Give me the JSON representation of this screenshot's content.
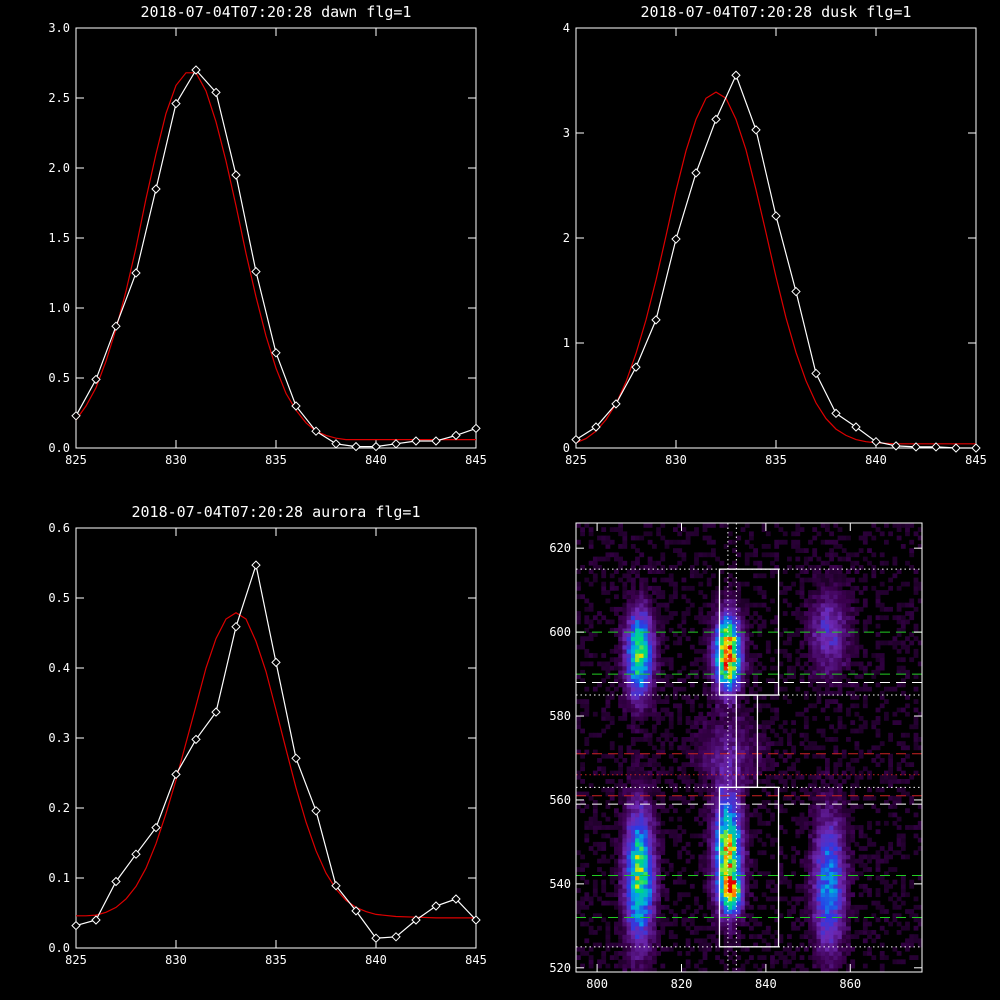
{
  "chart_data": [
    {
      "type": "line",
      "title": "2018-07-04T07:20:28 dawn flg=1",
      "xlim": [
        825,
        845
      ],
      "ylim": [
        0,
        3.0
      ],
      "xticks": [
        "825",
        "830",
        "835",
        "840",
        "845"
      ],
      "yticks": [
        "0.0",
        "0.5",
        "1.0",
        "1.5",
        "2.0",
        "2.5",
        "3.0"
      ],
      "series": [
        {
          "color": "#ffffff",
          "markers": "diamond",
          "x": [
            825,
            826,
            827,
            828,
            829,
            830,
            831,
            832,
            833,
            834,
            835,
            836,
            837,
            838,
            839,
            840,
            841,
            842,
            843,
            844,
            845
          ],
          "y": [
            0.23,
            0.49,
            0.87,
            1.25,
            1.85,
            2.46,
            2.7,
            2.54,
            1.95,
            1.26,
            0.68,
            0.3,
            0.12,
            0.03,
            0.01,
            0.01,
            0.03,
            0.05,
            0.05,
            0.09,
            0.14
          ]
        },
        {
          "color": "#dd0000",
          "markers": "none",
          "x": [
            825,
            825.5,
            826,
            826.5,
            827,
            827.5,
            828,
            828.5,
            829,
            829.5,
            830,
            830.5,
            831,
            831.5,
            832,
            832.5,
            833,
            833.5,
            834,
            834.5,
            835,
            835.5,
            836,
            836.5,
            837,
            837.5,
            838,
            838.5,
            839,
            839.5,
            840,
            841,
            842,
            843,
            844,
            845
          ],
          "y": [
            0.2,
            0.3,
            0.43,
            0.62,
            0.85,
            1.12,
            1.43,
            1.78,
            2.1,
            2.39,
            2.59,
            2.68,
            2.68,
            2.55,
            2.33,
            2.05,
            1.73,
            1.39,
            1.08,
            0.8,
            0.57,
            0.39,
            0.27,
            0.18,
            0.12,
            0.09,
            0.07,
            0.06,
            0.06,
            0.06,
            0.06,
            0.06,
            0.06,
            0.06,
            0.06,
            0.06
          ]
        }
      ]
    },
    {
      "type": "line",
      "title": "2018-07-04T07:20:28 dusk flg=1",
      "xlim": [
        825,
        845
      ],
      "ylim": [
        0,
        4
      ],
      "xticks": [
        "825",
        "830",
        "835",
        "840",
        "845"
      ],
      "yticks": [
        "0",
        "1",
        "2",
        "3",
        "4"
      ],
      "series": [
        {
          "color": "#ffffff",
          "markers": "diamond",
          "x": [
            825,
            826,
            827,
            828,
            829,
            830,
            831,
            832,
            833,
            834,
            835,
            836,
            837,
            838,
            839,
            840,
            841,
            842,
            843,
            844,
            845
          ],
          "y": [
            0.08,
            0.2,
            0.42,
            0.77,
            1.22,
            1.99,
            2.62,
            3.13,
            3.55,
            3.03,
            2.21,
            1.49,
            0.71,
            0.33,
            0.2,
            0.06,
            0.02,
            0.01,
            0.01,
            0,
            0
          ]
        },
        {
          "color": "#dd0000",
          "markers": "none",
          "x": [
            825,
            825.5,
            826,
            826.5,
            827,
            827.5,
            828,
            828.5,
            829,
            829.5,
            830,
            830.5,
            831,
            831.5,
            832,
            832.5,
            833,
            833.5,
            834,
            834.5,
            835,
            835.5,
            836,
            836.5,
            837,
            837.5,
            838,
            838.5,
            839,
            839.5,
            840,
            841,
            842,
            843,
            844,
            845
          ],
          "y": [
            0.05,
            0.09,
            0.16,
            0.27,
            0.42,
            0.63,
            0.9,
            1.22,
            1.6,
            2.02,
            2.45,
            2.83,
            3.13,
            3.33,
            3.39,
            3.33,
            3.13,
            2.84,
            2.46,
            2.05,
            1.63,
            1.24,
            0.91,
            0.64,
            0.43,
            0.28,
            0.18,
            0.12,
            0.08,
            0.06,
            0.05,
            0.04,
            0.04,
            0.04,
            0.04,
            0.04
          ]
        }
      ]
    },
    {
      "type": "line",
      "title": "2018-07-04T07:20:28 aurora flg=1",
      "xlim": [
        825,
        845
      ],
      "ylim": [
        0,
        0.6
      ],
      "xticks": [
        "825",
        "830",
        "835",
        "840",
        "845"
      ],
      "yticks": [
        "0.0",
        "0.1",
        "0.2",
        "0.3",
        "0.4",
        "0.5",
        "0.6"
      ],
      "series": [
        {
          "color": "#ffffff",
          "markers": "diamond",
          "x": [
            825,
            826,
            827,
            828,
            829,
            830,
            831,
            832,
            833,
            834,
            835,
            836,
            837,
            838,
            839,
            840,
            841,
            842,
            843,
            844,
            845
          ],
          "y": [
            0.032,
            0.04,
            0.095,
            0.134,
            0.172,
            0.248,
            0.298,
            0.337,
            0.459,
            0.547,
            0.408,
            0.271,
            0.196,
            0.089,
            0.053,
            0.014,
            0.016,
            0.04,
            0.06,
            0.07,
            0.04
          ]
        },
        {
          "color": "#dd0000",
          "markers": "none",
          "x": [
            825,
            825.5,
            826,
            826.5,
            827,
            827.5,
            828,
            828.5,
            829,
            829.5,
            830,
            830.5,
            831,
            831.5,
            832,
            832.5,
            833,
            833.5,
            834,
            834.5,
            835,
            835.5,
            836,
            836.5,
            837,
            837.5,
            838,
            838.5,
            839,
            839.5,
            840,
            841,
            842,
            843,
            844,
            845
          ],
          "y": [
            0.046,
            0.046,
            0.047,
            0.051,
            0.058,
            0.07,
            0.088,
            0.114,
            0.149,
            0.192,
            0.24,
            0.293,
            0.346,
            0.4,
            0.442,
            0.47,
            0.479,
            0.47,
            0.438,
            0.395,
            0.34,
            0.284,
            0.229,
            0.18,
            0.139,
            0.107,
            0.084,
            0.068,
            0.058,
            0.052,
            0.048,
            0.045,
            0.044,
            0.043,
            0.043,
            0.043
          ]
        }
      ]
    },
    {
      "type": "heatmap",
      "title": "",
      "xlim": [
        795,
        877
      ],
      "ylim": [
        519,
        626
      ],
      "xticks": [
        "800",
        "820",
        "840",
        "860"
      ],
      "yticks": [
        "520",
        "540",
        "560",
        "580",
        "600",
        "620"
      ],
      "blobs": [
        {
          "x": 810,
          "y": 595,
          "wx": 2.2,
          "wy": 7,
          "amp": 0.72
        },
        {
          "x": 810,
          "y": 542,
          "wx": 2.3,
          "wy": 11,
          "amp": 0.7
        },
        {
          "x": 831,
          "y": 595,
          "wx": 2.1,
          "wy": 6,
          "amp": 1.0
        },
        {
          "x": 831,
          "y": 548,
          "wx": 2.2,
          "wy": 9,
          "amp": 0.82
        },
        {
          "x": 832,
          "y": 538,
          "wx": 1.6,
          "wy": 3,
          "amp": 0.55
        },
        {
          "x": 855,
          "y": 540,
          "wx": 2.5,
          "wy": 11,
          "amp": 0.5
        },
        {
          "x": 855,
          "y": 600,
          "wx": 3.0,
          "wy": 7,
          "amp": 0.28
        },
        {
          "x": 831,
          "y": 571,
          "wx": 5.0,
          "wy": 5,
          "amp": 0.18
        }
      ],
      "boxes": [
        [
          829,
          585,
          843,
          615
        ],
        [
          833,
          563,
          838,
          585
        ],
        [
          829,
          525,
          843,
          563
        ]
      ],
      "vlines": [
        {
          "x": 831,
          "color": "#ffffff",
          "style": "dotted"
        },
        {
          "x": 833,
          "color": "#ffffff",
          "style": "dotted"
        }
      ],
      "hlines": [
        {
          "y": 615,
          "color": "#ffffff",
          "style": "dotted"
        },
        {
          "y": 600,
          "color": "#22cc22",
          "style": "dashed"
        },
        {
          "y": 590,
          "color": "#22cc22",
          "style": "dashed"
        },
        {
          "y": 588,
          "color": "#ffffff",
          "style": "dashed"
        },
        {
          "y": 585,
          "color": "#ffffff",
          "style": "dotted"
        },
        {
          "y": 571,
          "color": "#cc2222",
          "style": "dashed"
        },
        {
          "y": 566,
          "color": "#cc2222",
          "style": "dotted"
        },
        {
          "y": 563,
          "color": "#ffffff",
          "style": "dotted"
        },
        {
          "y": 561,
          "color": "#cc2222",
          "style": "dashed"
        },
        {
          "y": 559,
          "color": "#ffffff",
          "style": "dashed"
        },
        {
          "y": 542,
          "color": "#22cc22",
          "style": "dashed"
        },
        {
          "y": 532,
          "color": "#22cc22",
          "style": "dashed"
        },
        {
          "y": 525,
          "color": "#ffffff",
          "style": "dotted"
        }
      ]
    }
  ]
}
